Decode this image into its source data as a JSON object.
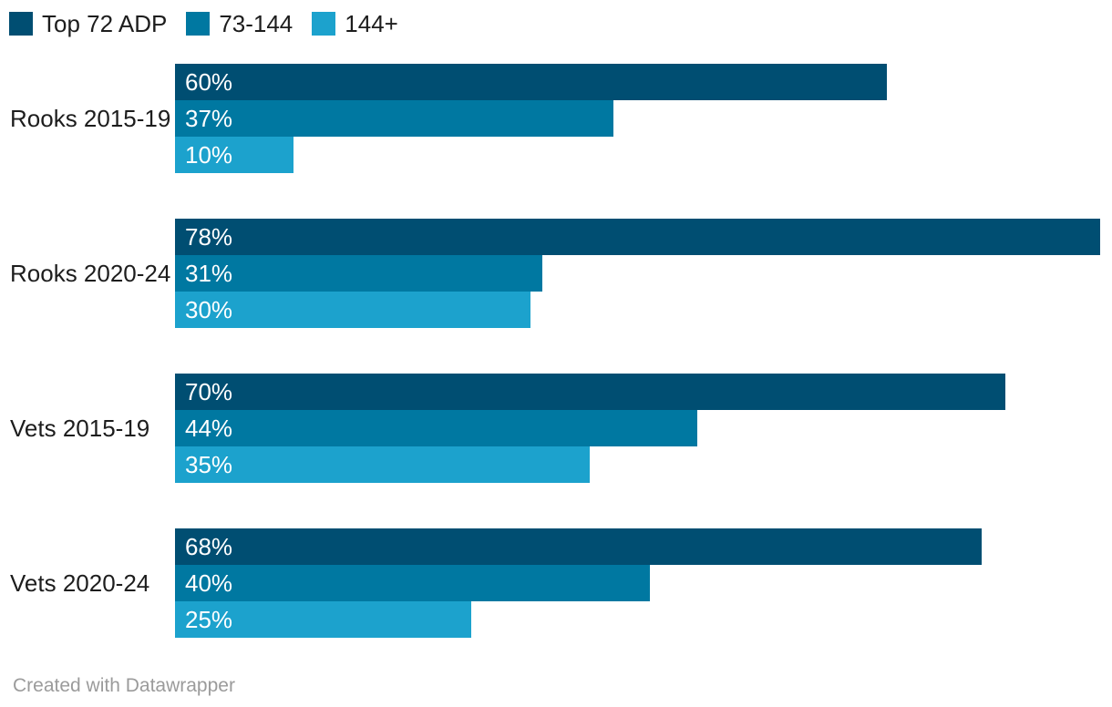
{
  "legend": {
    "items": [
      {
        "label": "Top 72 ADP",
        "color": "#004e72",
        "icon": "legend-swatch-dark-blue"
      },
      {
        "label": "73-144",
        "color": "#0078a1",
        "icon": "legend-swatch-medium-blue"
      },
      {
        "label": "144+",
        "color": "#1ca2cd",
        "icon": "legend-swatch-light-blue"
      }
    ]
  },
  "chart_data": {
    "type": "bar",
    "orientation": "horizontal",
    "title": "",
    "xlabel": "",
    "ylabel": "",
    "xlim": [
      0,
      79
    ],
    "grid": false,
    "legend_position": "top-left",
    "bar_label_position": "inside-start",
    "value_suffix": "%",
    "categories": [
      "Rooks 2015-19",
      "Rooks 2020-24",
      "Vets 2015-19",
      "Vets 2020-24"
    ],
    "series": [
      {
        "name": "Top 72 ADP",
        "color": "#004e72",
        "values": [
          60,
          78,
          70,
          68
        ]
      },
      {
        "name": "73-144",
        "color": "#0078a1",
        "values": [
          37,
          31,
          44,
          40
        ]
      },
      {
        "name": "144+",
        "color": "#1ca2cd",
        "values": [
          10,
          30,
          35,
          25
        ]
      }
    ]
  },
  "colors": {
    "background": "#ffffff",
    "category_text": "#1d1d1d",
    "bar_value_text": "#ffffff",
    "credit_text": "#9b9b9b"
  },
  "footer": {
    "credit": "Created with Datawrapper"
  }
}
